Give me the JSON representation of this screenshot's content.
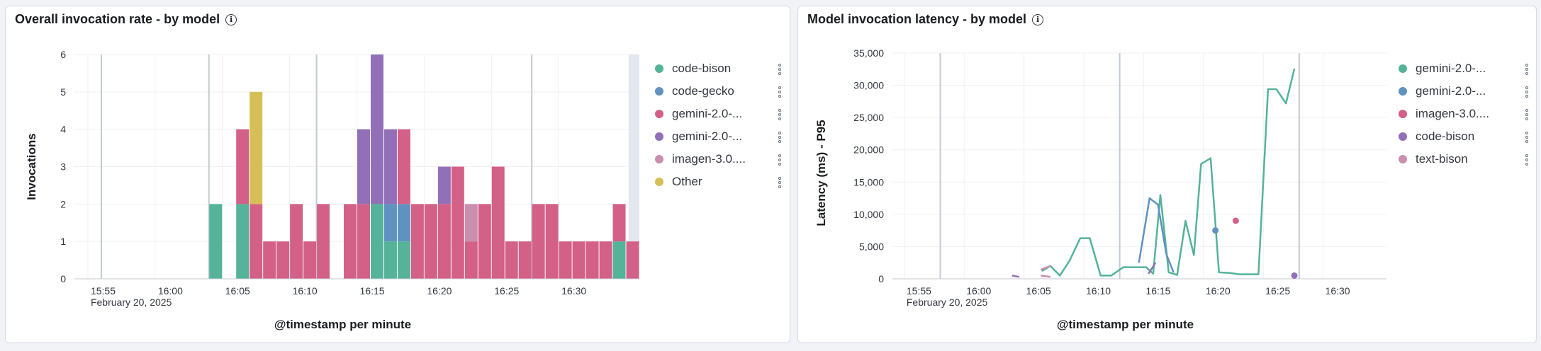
{
  "colors": {
    "green": "#54b399",
    "blue": "#6092c0",
    "pink": "#d36086",
    "purple": "#9170b8",
    "light_pink": "#ca8eae",
    "gold": "#d6bf57"
  },
  "left_panel": {
    "title": "Overall invocation rate - by model",
    "legend": [
      {
        "label": "code-bison",
        "color": "#54b399"
      },
      {
        "label": "code-gecko",
        "color": "#6092c0"
      },
      {
        "label": "gemini-2.0-...",
        "color": "#d36086"
      },
      {
        "label": "gemini-2.0-...",
        "color": "#9170b8"
      },
      {
        "label": "imagen-3.0....",
        "color": "#ca8eae"
      },
      {
        "label": "Other",
        "color": "#d6bf57"
      }
    ]
  },
  "right_panel": {
    "title": "Model invocation latency - by model",
    "legend": [
      {
        "label": "gemini-2.0-...",
        "color": "#54b399"
      },
      {
        "label": "gemini-2.0-...",
        "color": "#6092c0"
      },
      {
        "label": "imagen-3.0....",
        "color": "#d36086"
      },
      {
        "label": "code-bison",
        "color": "#9170b8"
      },
      {
        "label": "text-bison",
        "color": "#ca8eae"
      }
    ]
  },
  "chart_data": [
    {
      "type": "bar",
      "stacked": true,
      "title": "Overall invocation rate - by model",
      "xlabel": "@timestamp per minute",
      "ylabel": "Invocations",
      "ylim": [
        0,
        6
      ],
      "yticks": [
        0,
        1,
        2,
        3,
        4,
        5,
        6
      ],
      "x_domain_minutes": [
        954,
        995
      ],
      "x_ticks": [
        {
          "m": 955,
          "label": "15:55",
          "date": "February 20, 2025"
        },
        {
          "m": 960,
          "label": "16:00"
        },
        {
          "m": 965,
          "label": "16:05"
        },
        {
          "m": 970,
          "label": "16:10"
        },
        {
          "m": 975,
          "label": "16:15"
        },
        {
          "m": 980,
          "label": "16:20"
        },
        {
          "m": 985,
          "label": "16:25"
        },
        {
          "m": 990,
          "label": "16:30"
        }
      ],
      "x_bold_lines": [
        956,
        964,
        972,
        988
      ],
      "current_minute_band": 995,
      "series_colors": [
        "#54b399",
        "#6092c0",
        "#d36086",
        "#9170b8",
        "#ca8eae",
        "#d6bf57"
      ],
      "bars": [
        {
          "m": 964,
          "values": [
            2,
            0,
            0,
            0,
            0,
            0
          ]
        },
        {
          "m": 966,
          "values": [
            2,
            0,
            2,
            0,
            0,
            0
          ]
        },
        {
          "m": 967,
          "values": [
            0,
            0,
            2,
            0,
            0,
            3
          ]
        },
        {
          "m": 968,
          "values": [
            0,
            0,
            1,
            0,
            0,
            0
          ]
        },
        {
          "m": 969,
          "values": [
            0,
            0,
            1,
            0,
            0,
            0
          ]
        },
        {
          "m": 970,
          "values": [
            0,
            0,
            2,
            0,
            0,
            0
          ]
        },
        {
          "m": 971,
          "values": [
            0,
            0,
            1,
            0,
            0,
            0
          ]
        },
        {
          "m": 972,
          "values": [
            0,
            0,
            2,
            0,
            0,
            0
          ]
        },
        {
          "m": 974,
          "values": [
            0,
            0,
            2,
            0,
            0,
            0
          ]
        },
        {
          "m": 975,
          "values": [
            0,
            0,
            2,
            2,
            0,
            0
          ]
        },
        {
          "m": 976,
          "values": [
            2,
            0,
            0,
            4,
            0,
            0
          ]
        },
        {
          "m": 977,
          "values": [
            1,
            1,
            0,
            2,
            0,
            0
          ]
        },
        {
          "m": 978,
          "values": [
            1,
            1,
            2,
            0,
            0,
            0
          ]
        },
        {
          "m": 979,
          "values": [
            0,
            0,
            2,
            0,
            0,
            0
          ]
        },
        {
          "m": 980,
          "values": [
            0,
            0,
            2,
            0,
            0,
            0
          ]
        },
        {
          "m": 981,
          "values": [
            0,
            0,
            2,
            1,
            0,
            0
          ]
        },
        {
          "m": 982,
          "values": [
            0,
            0,
            3,
            0,
            0,
            0
          ]
        },
        {
          "m": 983,
          "values": [
            0,
            0,
            1,
            0,
            1,
            0
          ]
        },
        {
          "m": 984,
          "values": [
            0,
            0,
            2,
            0,
            0,
            0
          ]
        },
        {
          "m": 985,
          "values": [
            0,
            0,
            3,
            0,
            0,
            0
          ]
        },
        {
          "m": 986,
          "values": [
            0,
            0,
            1,
            0,
            0,
            0
          ]
        },
        {
          "m": 987,
          "values": [
            0,
            0,
            1,
            0,
            0,
            0
          ]
        },
        {
          "m": 988,
          "values": [
            0,
            0,
            2,
            0,
            0,
            0
          ]
        },
        {
          "m": 989,
          "values": [
            0,
            0,
            2,
            0,
            0,
            0
          ]
        },
        {
          "m": 990,
          "values": [
            0,
            0,
            1,
            0,
            0,
            0
          ]
        },
        {
          "m": 991,
          "values": [
            0,
            0,
            1,
            0,
            0,
            0
          ]
        },
        {
          "m": 992,
          "values": [
            0,
            0,
            1,
            0,
            0,
            0
          ]
        },
        {
          "m": 993,
          "values": [
            0,
            0,
            1,
            0,
            0,
            0
          ]
        },
        {
          "m": 994,
          "values": [
            1,
            0,
            1,
            0,
            0,
            0
          ]
        },
        {
          "m": 995,
          "values": [
            0,
            0,
            1,
            0,
            0,
            0
          ]
        }
      ]
    },
    {
      "type": "line",
      "title": "Model invocation latency - by model",
      "xlabel": "@timestamp per minute",
      "ylabel": "Latency (ms) - P95",
      "ylim": [
        0,
        35000
      ],
      "yticks": [
        0,
        5000,
        10000,
        15000,
        20000,
        25000,
        30000,
        35000
      ],
      "ytick_labels": [
        "0",
        "5,000",
        "10,000",
        "15,000",
        "20,000",
        "25,000",
        "30,000",
        "35,000"
      ],
      "x_domain_minutes": [
        954,
        995.3
      ],
      "x_ticks": [
        {
          "m": 955,
          "label": "15:55",
          "date": "February 20, 2025"
        },
        {
          "m": 960,
          "label": "16:00"
        },
        {
          "m": 965,
          "label": "16:05"
        },
        {
          "m": 970,
          "label": "16:10"
        },
        {
          "m": 975,
          "label": "16:15"
        },
        {
          "m": 980,
          "label": "16:20"
        },
        {
          "m": 985,
          "label": "16:25"
        },
        {
          "m": 990,
          "label": "16:30"
        }
      ],
      "x_bold_lines": [
        958,
        973,
        988
      ],
      "series": [
        {
          "name": "gemini-2.0-...",
          "color": "#54b399",
          "points": [
            [
              966.5,
              1200
            ],
            [
              967.2,
              2000
            ],
            [
              968,
              500
            ],
            [
              968.8,
              2800
            ],
            [
              969.7,
              6300
            ],
            [
              970.5,
              6300
            ],
            [
              971.4,
              500
            ],
            [
              972.3,
              500
            ],
            [
              973.3,
              1800
            ],
            [
              974.2,
              1800
            ],
            [
              975.2,
              1800
            ],
            [
              975.8,
              800
            ],
            [
              976.4,
              13000
            ],
            [
              977.1,
              1000
            ],
            [
              977.8,
              600
            ],
            [
              978.5,
              9000
            ],
            [
              979.2,
              3700
            ],
            [
              979.8,
              17800
            ],
            [
              980.6,
              18700
            ],
            [
              981.3,
              1000
            ],
            [
              982.2,
              900
            ],
            [
              983,
              700
            ],
            [
              983.8,
              700
            ],
            [
              984.6,
              700
            ],
            [
              985.4,
              29400
            ],
            [
              986.1,
              29400
            ],
            [
              986.9,
              27200
            ],
            [
              987.6,
              32600
            ]
          ]
        },
        {
          "name": "gemini-2.0-...",
          "color": "#6092c0",
          "points": [
            [
              974.6,
              2500
            ],
            [
              975.5,
              12500
            ],
            [
              976.2,
              11500
            ],
            [
              976.9,
              3800
            ],
            [
              977.5,
              1000
            ]
          ],
          "dots": [
            [
              981.0,
              7500
            ]
          ]
        },
        {
          "name": "imagen-3.0....",
          "color": "#d36086",
          "points": [],
          "dots": [
            [
              982.7,
              9000
            ]
          ]
        },
        {
          "name": "code-bison",
          "color": "#9170b8",
          "points": [
            [
              964.0,
              500
            ],
            [
              964.6,
              300
            ]
          ],
          "segments": [
            [
              [
                975.4,
                800
              ],
              [
                976.0,
                2500
              ]
            ]
          ],
          "dots": [
            [
              987.6,
              500
            ]
          ]
        },
        {
          "name": "text-bison",
          "color": "#ca8eae",
          "points": [
            [
              966.4,
              1400
            ],
            [
              967.2,
              2000
            ]
          ],
          "segments": [
            [
              [
                966.4,
                500
              ],
              [
                967.2,
                300
              ]
            ]
          ]
        }
      ]
    }
  ]
}
